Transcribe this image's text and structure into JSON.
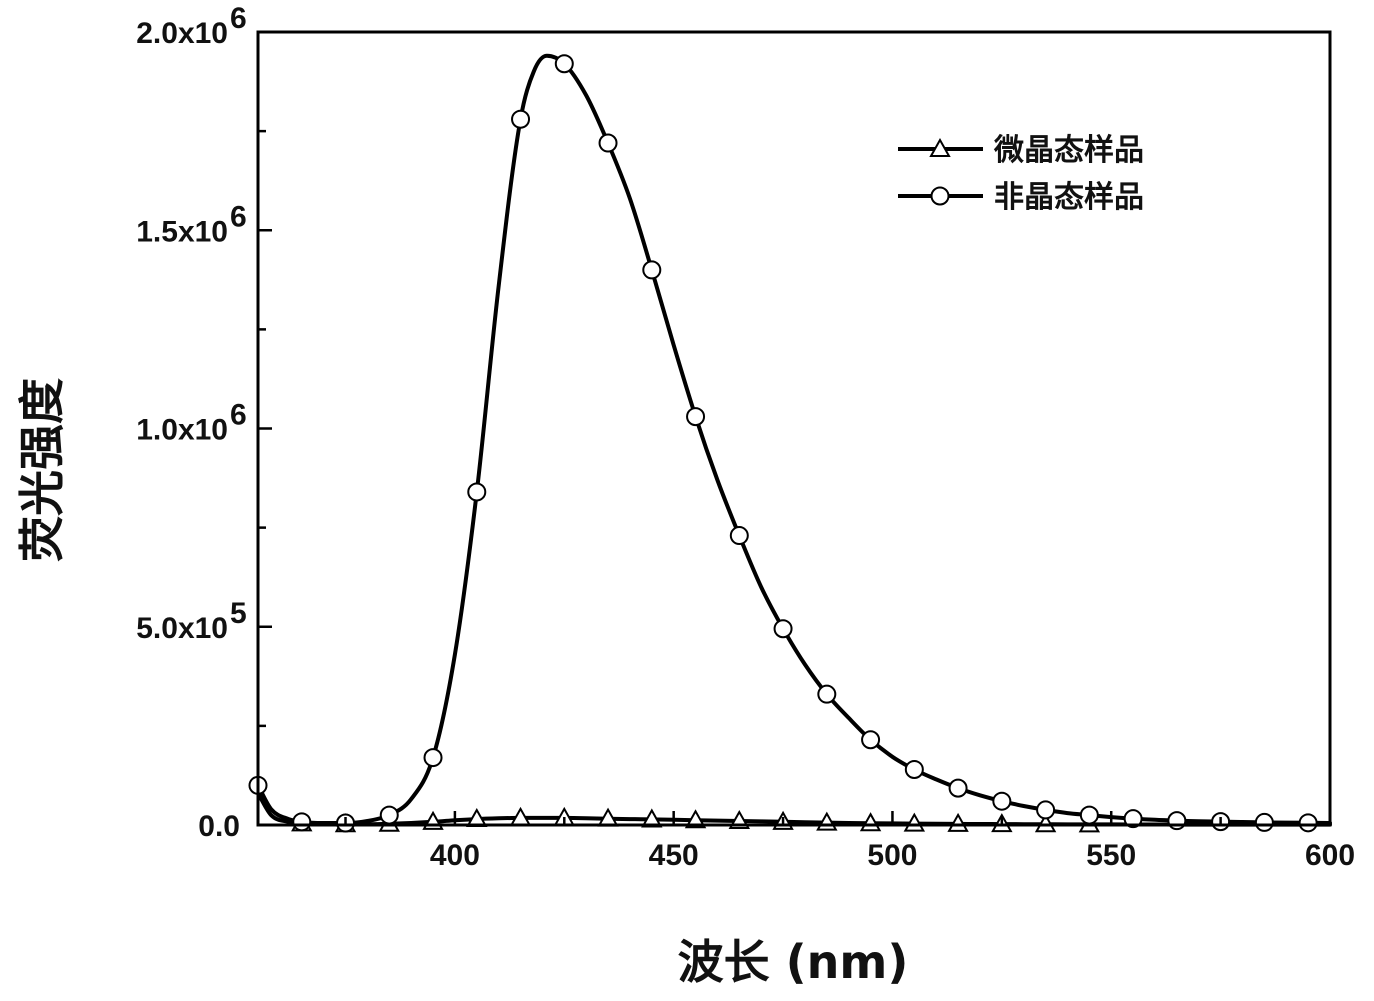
{
  "chart_data": {
    "type": "line",
    "xlabel": "波长 (nm)",
    "ylabel": "荧光强度",
    "xlim": [
      355,
      600
    ],
    "ylim": [
      0,
      2000000
    ],
    "x_ticks": [
      400,
      450,
      500,
      550,
      600
    ],
    "x_tick_labels": [
      "400",
      "450",
      "500",
      "550",
      "600"
    ],
    "y_ticks": [
      0,
      500000,
      1000000,
      1500000,
      2000000
    ],
    "y_tick_labels": [
      {
        "mantissa": "0.0",
        "exp": ""
      },
      {
        "mantissa": "5.0x10",
        "exp": "5"
      },
      {
        "mantissa": "1.0x10",
        "exp": "6"
      },
      {
        "mantissa": "1.5x10",
        "exp": "6"
      },
      {
        "mantissa": "2.0x10",
        "exp": "6"
      }
    ],
    "legend_position": "top-right",
    "series": [
      {
        "name": "微晶态样品",
        "marker": "triangle",
        "color": "#000000",
        "x": [
          355,
          358,
          362,
          365,
          370,
          375,
          380,
          385,
          390,
          395,
          400,
          405,
          410,
          415,
          420,
          425,
          430,
          435,
          440,
          445,
          450,
          455,
          460,
          465,
          470,
          475,
          480,
          485,
          490,
          495,
          500,
          505,
          510,
          515,
          520,
          525,
          530,
          535,
          540,
          545,
          550,
          555,
          560,
          565,
          570,
          575,
          580,
          585,
          590,
          595,
          600
        ],
        "y": [
          80000,
          25000,
          8000,
          4000,
          2000,
          2000,
          2000,
          3000,
          5000,
          8000,
          12000,
          15000,
          17000,
          18000,
          18000,
          18000,
          17000,
          16000,
          15000,
          14000,
          13000,
          12000,
          11000,
          10000,
          9000,
          8000,
          7000,
          6000,
          5000,
          4500,
          4000,
          3500,
          3000,
          2800,
          2500,
          2200,
          2000,
          1800,
          1600,
          1500,
          1400,
          1300,
          1200,
          1100,
          1000,
          1000,
          1000,
          1000,
          1000,
          1000,
          1000
        ],
        "markers_x": [
          365,
          375,
          385,
          395,
          405,
          415,
          425,
          435,
          445,
          455,
          465,
          475,
          485,
          495,
          505,
          515,
          525,
          535,
          545
        ]
      },
      {
        "name": "非晶态样品",
        "marker": "circle",
        "color": "#000000",
        "x": [
          355,
          358,
          362,
          365,
          370,
          375,
          380,
          385,
          390,
          395,
          400,
          405,
          410,
          415,
          418,
          421,
          425,
          430,
          435,
          440,
          445,
          450,
          455,
          460,
          465,
          470,
          475,
          480,
          485,
          490,
          495,
          500,
          505,
          510,
          515,
          520,
          525,
          530,
          535,
          540,
          545,
          550,
          555,
          560,
          565,
          570,
          575,
          580,
          585,
          590,
          595,
          600
        ],
        "y": [
          100000,
          40000,
          15000,
          8000,
          5000,
          5000,
          10000,
          25000,
          65000,
          170000,
          430000,
          840000,
          1360000,
          1780000,
          1900000,
          1940000,
          1920000,
          1840000,
          1720000,
          1580000,
          1400000,
          1210000,
          1030000,
          870000,
          730000,
          600000,
          495000,
          405000,
          330000,
          270000,
          215000,
          172000,
          140000,
          115000,
          93000,
          75000,
          60000,
          48000,
          38000,
          30000,
          25000,
          20000,
          16000,
          13000,
          11000,
          9500,
          8500,
          7500,
          6500,
          6000,
          5500,
          5000
        ],
        "markers_x": [
          355,
          365,
          375,
          385,
          395,
          405,
          415,
          425,
          435,
          445,
          455,
          465,
          475,
          485,
          495,
          505,
          515,
          525,
          535,
          545,
          555,
          565,
          575,
          585,
          595
        ]
      }
    ]
  }
}
